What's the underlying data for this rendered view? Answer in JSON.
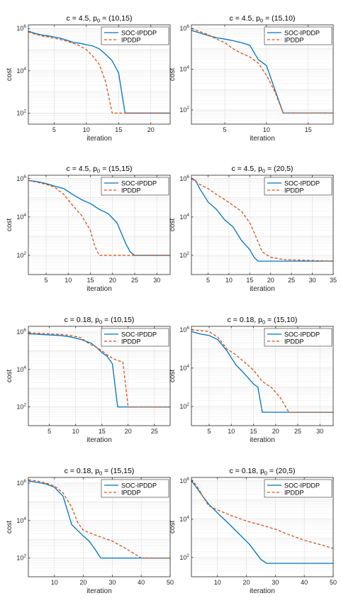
{
  "chart_data": [
    {
      "type": "line",
      "title_main": "c = 4.5, p",
      "title_sub": "0",
      "title_tail": " = (10,15)",
      "xlabel": "iteration",
      "ylabel": "cost",
      "xlim": [
        1,
        23
      ],
      "ylim": [
        30,
        1500000
      ],
      "xscale": "linear",
      "yscale": "log",
      "grid": true,
      "legend": "top-right",
      "xticks": [
        5,
        10,
        15,
        20
      ],
      "series": [
        {
          "name": "SOC-IPDDP",
          "color": "#0072BD",
          "dash": "solid",
          "x": [
            1,
            2,
            3,
            4,
            5,
            6,
            7,
            8,
            9,
            10,
            11,
            12,
            13,
            14,
            15,
            16,
            23
          ],
          "y": [
            750000,
            600000,
            500000,
            450000,
            400000,
            350000,
            280000,
            220000,
            200000,
            170000,
            150000,
            110000,
            60000,
            30000,
            8000,
            100,
            100
          ]
        },
        {
          "name": "IPDDP",
          "color": "#D95319",
          "dash": "dashed",
          "x": [
            1,
            2,
            3,
            4,
            5,
            6,
            7,
            8,
            9,
            10,
            11,
            12,
            13,
            14,
            23
          ],
          "y": [
            700000,
            550000,
            450000,
            400000,
            350000,
            300000,
            250000,
            200000,
            150000,
            100000,
            50000,
            20000,
            3000,
            100,
            100
          ]
        }
      ]
    },
    {
      "type": "line",
      "title_main": "c = 4.5, p",
      "title_sub": "0",
      "title_tail": " = (15,10)",
      "xlabel": "iteration",
      "ylabel": "cost",
      "xlim": [
        1,
        18
      ],
      "ylim": [
        20,
        1500000
      ],
      "xscale": "linear",
      "yscale": "log",
      "grid": true,
      "legend": "top-right",
      "xticks": [
        5,
        10,
        15
      ],
      "series": [
        {
          "name": "SOC-IPDDP",
          "color": "#0072BD",
          "dash": "solid",
          "x": [
            1,
            2,
            3,
            4,
            5,
            6,
            7,
            8,
            9,
            10,
            11,
            12,
            18
          ],
          "y": [
            800000,
            600000,
            450000,
            350000,
            300000,
            250000,
            200000,
            150000,
            30000,
            15000,
            1000,
            70,
            70
          ]
        },
        {
          "name": "IPDDP",
          "color": "#D95319",
          "dash": "dashed",
          "x": [
            1,
            2,
            3,
            4,
            5,
            6,
            7,
            8,
            9,
            10,
            11,
            12,
            18
          ],
          "y": [
            1000000,
            700000,
            500000,
            300000,
            200000,
            100000,
            60000,
            40000,
            20000,
            5000,
            800,
            70,
            70
          ]
        }
      ]
    },
    {
      "type": "line",
      "title_main": "c = 4.5, p",
      "title_sub": "0",
      "title_tail": " = (15,15)",
      "xlabel": "iteration",
      "ylabel": "cost",
      "xlim": [
        1,
        33
      ],
      "ylim": [
        10,
        1500000
      ],
      "xscale": "linear",
      "yscale": "log",
      "grid": true,
      "legend": "top-right",
      "xticks": [
        5,
        10,
        15,
        20,
        25,
        30
      ],
      "series": [
        {
          "name": "SOC-IPDDP",
          "color": "#0072BD",
          "dash": "solid",
          "x": [
            1,
            3,
            5,
            7,
            9,
            11,
            13,
            15,
            17,
            19,
            21,
            23,
            24,
            25,
            26,
            33
          ],
          "y": [
            800000,
            700000,
            550000,
            400000,
            300000,
            150000,
            80000,
            50000,
            25000,
            15000,
            5000,
            400,
            150,
            100,
            100,
            100
          ]
        },
        {
          "name": "IPDDP",
          "color": "#D95319",
          "dash": "dashed",
          "x": [
            1,
            3,
            5,
            7,
            9,
            11,
            13,
            15,
            16,
            17,
            33
          ],
          "y": [
            800000,
            650000,
            500000,
            350000,
            150000,
            40000,
            12000,
            2000,
            300,
            100,
            100
          ]
        }
      ]
    },
    {
      "type": "line",
      "title_main": "c = 4.5, p",
      "title_sub": "0",
      "title_tail": " = (20,5)",
      "xlabel": "iteration",
      "ylabel": "cost",
      "xlim": [
        1,
        35
      ],
      "ylim": [
        10,
        1500000
      ],
      "xscale": "linear",
      "yscale": "log",
      "grid": true,
      "legend": "top-right",
      "xticks": [
        5,
        10,
        15,
        20,
        25,
        30,
        35
      ],
      "series": [
        {
          "name": "SOC-IPDDP",
          "color": "#0072BD",
          "dash": "solid",
          "x": [
            1,
            2,
            3,
            5,
            7,
            9,
            11,
            13,
            15,
            16,
            17,
            35
          ],
          "y": [
            1000000,
            800000,
            300000,
            60000,
            25000,
            7000,
            3000,
            600,
            200,
            80,
            50,
            50
          ]
        },
        {
          "name": "IPDDP",
          "color": "#D95319",
          "dash": "dashed",
          "x": [
            1,
            3,
            5,
            7,
            9,
            11,
            13,
            15,
            17,
            18,
            20,
            23,
            35
          ],
          "y": [
            1000000,
            500000,
            300000,
            150000,
            80000,
            40000,
            20000,
            5000,
            500,
            150,
            80,
            60,
            50
          ]
        }
      ]
    },
    {
      "type": "line",
      "title_main": "c = 0.18, p",
      "title_sub": "0",
      "title_tail": " = (10,15)",
      "xlabel": "iteration",
      "ylabel": "cost",
      "xlim": [
        1,
        28
      ],
      "ylim": [
        10,
        2000000
      ],
      "xscale": "linear",
      "yscale": "log",
      "grid": true,
      "legend": "top-right",
      "xticks": [
        5,
        10,
        15,
        20,
        25
      ],
      "series": [
        {
          "name": "SOC-IPDDP",
          "color": "#0072BD",
          "dash": "solid",
          "x": [
            1,
            3,
            5,
            7,
            9,
            11,
            13,
            14,
            15,
            16,
            17,
            18,
            28
          ],
          "y": [
            800000,
            750000,
            700000,
            650000,
            550000,
            400000,
            250000,
            150000,
            80000,
            50000,
            20000,
            100,
            100
          ]
        },
        {
          "name": "IPDDP",
          "color": "#D95319",
          "dash": "dashed",
          "x": [
            1,
            3,
            5,
            7,
            9,
            11,
            12,
            13,
            14,
            15,
            16,
            17,
            18,
            19,
            20,
            28
          ],
          "y": [
            900000,
            850000,
            800000,
            750000,
            650000,
            500000,
            300000,
            200000,
            150000,
            100000,
            60000,
            40000,
            30000,
            25000,
            100,
            100
          ]
        }
      ]
    },
    {
      "type": "line",
      "title_main": "c = 0.18, p",
      "title_sub": "0",
      "title_tail": " = (15,10)",
      "xlabel": "iteration",
      "ylabel": "cost",
      "xlim": [
        1,
        33
      ],
      "ylim": [
        10,
        1500000
      ],
      "xscale": "linear",
      "yscale": "log",
      "grid": true,
      "legend": "top-right",
      "xticks": [
        5,
        10,
        15,
        20,
        25,
        30
      ],
      "series": [
        {
          "name": "SOC-IPDDP",
          "color": "#0072BD",
          "dash": "solid",
          "x": [
            1,
            3,
            5,
            7,
            9,
            11,
            13,
            15,
            16,
            17,
            33
          ],
          "y": [
            800000,
            600000,
            500000,
            300000,
            80000,
            15000,
            5000,
            1500,
            1000,
            50,
            50
          ]
        },
        {
          "name": "IPDDP",
          "color": "#D95319",
          "dash": "dashed",
          "x": [
            1,
            3,
            5,
            7,
            9,
            11,
            13,
            15,
            17,
            19,
            21,
            23,
            33
          ],
          "y": [
            1000000,
            900000,
            800000,
            400000,
            100000,
            50000,
            20000,
            8000,
            2000,
            1000,
            300,
            50,
            50
          ]
        }
      ]
    },
    {
      "type": "line",
      "title_main": "c = 0.18, p",
      "title_sub": "0",
      "title_tail": " = (15,15)",
      "xlabel": "iteration",
      "ylabel": "cost",
      "xlim": [
        1,
        50
      ],
      "ylim": [
        10,
        2000000
      ],
      "xscale": "linear",
      "yscale": "log",
      "grid": true,
      "legend": "top-right",
      "xticks": [
        10,
        20,
        30,
        40,
        50
      ],
      "series": [
        {
          "name": "SOC-IPDDP",
          "color": "#0072BD",
          "dash": "solid",
          "x": [
            1,
            4,
            7,
            10,
            13,
            16,
            18,
            20,
            22,
            24,
            26,
            28,
            50
          ],
          "y": [
            1300000,
            1100000,
            900000,
            600000,
            200000,
            6000,
            3000,
            1500,
            800,
            300,
            100,
            100,
            100
          ]
        },
        {
          "name": "IPDDP",
          "color": "#D95319",
          "dash": "dashed",
          "x": [
            1,
            4,
            7,
            10,
            13,
            16,
            18,
            20,
            25,
            30,
            35,
            40,
            50
          ],
          "y": [
            1500000,
            1300000,
            1000000,
            700000,
            300000,
            50000,
            8000,
            3000,
            1500,
            800,
            300,
            100,
            100
          ]
        }
      ]
    },
    {
      "type": "line",
      "title_main": "c = 0.18, p",
      "title_sub": "0",
      "title_tail": " = (20,5)",
      "xlabel": "iteration",
      "ylabel": "cost",
      "xlim": [
        1,
        50
      ],
      "ylim": [
        10,
        1500000
      ],
      "xscale": "linear",
      "yscale": "log",
      "grid": true,
      "legend": "top-right",
      "xticks": [
        10,
        20,
        30,
        40,
        50
      ],
      "series": [
        {
          "name": "SOC-IPDDP",
          "color": "#0072BD",
          "dash": "solid",
          "x": [
            1,
            3,
            5,
            7,
            9,
            11,
            13,
            15,
            17,
            19,
            21,
            23,
            25,
            27,
            50
          ],
          "y": [
            1000000,
            400000,
            150000,
            60000,
            30000,
            15000,
            8000,
            4000,
            2000,
            1000,
            500,
            200,
            80,
            50,
            50
          ]
        },
        {
          "name": "IPDDP",
          "color": "#D95319",
          "dash": "dashed",
          "x": [
            1,
            3,
            5,
            7,
            10,
            15,
            20,
            25,
            30,
            35,
            40,
            45,
            50
          ],
          "y": [
            1200000,
            500000,
            150000,
            50000,
            30000,
            15000,
            8000,
            5000,
            3000,
            1500,
            800,
            500,
            300
          ]
        }
      ]
    }
  ]
}
